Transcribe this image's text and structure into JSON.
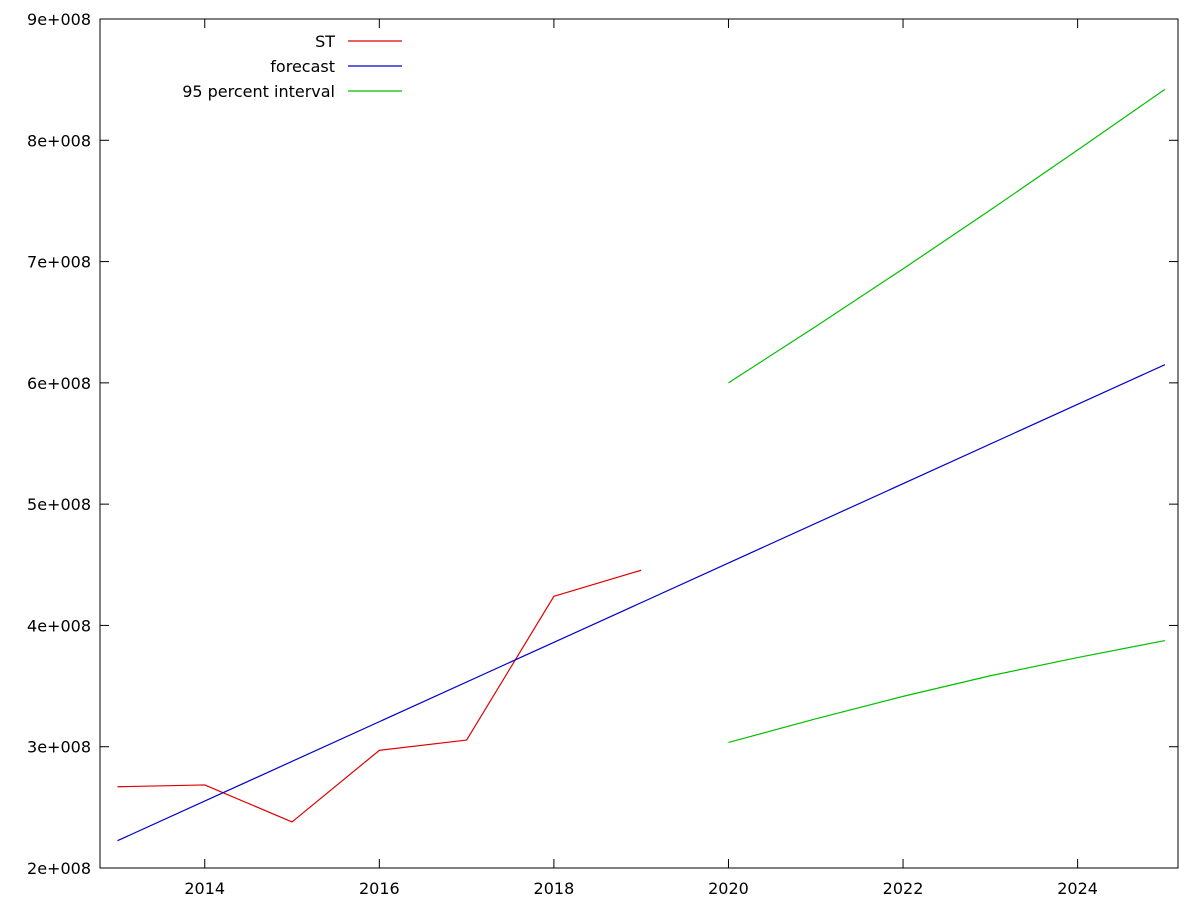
{
  "chart_data": {
    "type": "line",
    "title": "",
    "xlabel": "",
    "ylabel": "",
    "xlim": [
      2012.8,
      2025.15
    ],
    "ylim": [
      200000000,
      900000000
    ],
    "x_ticks": [
      2014,
      2016,
      2018,
      2020,
      2022,
      2024
    ],
    "x_tick_labels": [
      "2014",
      "2016",
      "2018",
      "2020",
      "2022",
      "2024"
    ],
    "y_ticks": [
      200000000,
      300000000,
      400000000,
      500000000,
      600000000,
      700000000,
      800000000,
      900000000
    ],
    "y_tick_labels": [
      "2e+008",
      "3e+008",
      "4e+008",
      "5e+008",
      "6e+008",
      "7e+008",
      "8e+008",
      "9e+008"
    ],
    "grid": false,
    "legend_position": "top-left",
    "series": [
      {
        "name": "ST",
        "color": "#e00000",
        "points": [
          [
            2013,
            267000000
          ],
          [
            2014,
            268500000
          ],
          [
            2015,
            238000000
          ],
          [
            2016,
            297000000
          ],
          [
            2017,
            305500000
          ],
          [
            2018,
            424000000
          ],
          [
            2019,
            445500000
          ]
        ]
      },
      {
        "name": "forecast",
        "color": "#0000c8",
        "points": [
          [
            2013,
            222500000
          ],
          [
            2025,
            615000000
          ]
        ]
      },
      {
        "name": "95 percent interval",
        "color": "#00c000",
        "points": [
          [
            2020,
            600000000
          ],
          [
            2021,
            646500000
          ],
          [
            2022,
            694000000
          ],
          [
            2023,
            742500000
          ],
          [
            2024,
            792000000
          ],
          [
            2025,
            842000000
          ]
        ]
      },
      {
        "color": "#00c000",
        "points": [
          [
            2020,
            303500000
          ],
          [
            2021,
            323000000
          ],
          [
            2022,
            341500000
          ],
          [
            2023,
            358500000
          ],
          [
            2024,
            373500000
          ],
          [
            2025,
            387500000
          ]
        ]
      }
    ]
  }
}
